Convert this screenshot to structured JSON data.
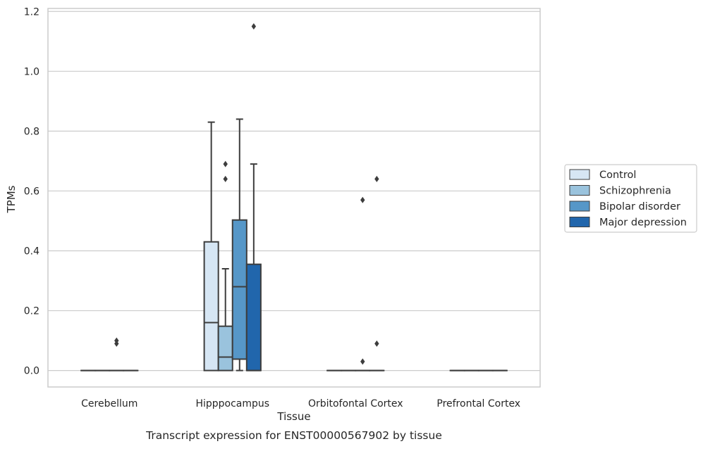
{
  "chart_data": {
    "type": "box",
    "xlabel": "Tissue",
    "ylabel": "TPMs",
    "caption": "Transcript expression for ENST00000567902 by tissue",
    "ylim": [
      -0.055,
      1.21
    ],
    "yticks": [
      0.0,
      0.2,
      0.4,
      0.6,
      0.8,
      1.0,
      1.2
    ],
    "ytick_labels": [
      "0.0",
      "0.2",
      "0.4",
      "0.6",
      "0.8",
      "1.0",
      "1.2"
    ],
    "grid": "horizontal",
    "legend_position": "right",
    "categories": [
      "Cerebellum",
      "Hipppocampus",
      "Orbitofontal Cortex",
      "Prefrontal Cortex"
    ],
    "series": [
      {
        "name": "Control",
        "color": "#d6e6f4",
        "boxes": [
          {
            "category": "Cerebellum",
            "whisker_low": 0,
            "q1": 0,
            "median": 0,
            "q3": 0,
            "whisker_high": 0,
            "outliers": []
          },
          {
            "category": "Hipppocampus",
            "whisker_low": 0,
            "q1": 0,
            "median": 0.16,
            "q3": 0.43,
            "whisker_high": 0.83,
            "outliers": []
          },
          {
            "category": "Orbitofontal Cortex",
            "whisker_low": 0,
            "q1": 0,
            "median": 0,
            "q3": 0,
            "whisker_high": 0,
            "outliers": []
          },
          {
            "category": "Prefrontal Cortex",
            "whisker_low": 0,
            "q1": 0,
            "median": 0,
            "q3": 0,
            "whisker_high": 0,
            "outliers": []
          }
        ]
      },
      {
        "name": "Schizophrenia",
        "color": "#9ac3dd",
        "boxes": [
          {
            "category": "Cerebellum",
            "whisker_low": 0,
            "q1": 0,
            "median": 0,
            "q3": 0,
            "whisker_high": 0,
            "outliers": []
          },
          {
            "category": "Hipppocampus",
            "whisker_low": 0,
            "q1": 0,
            "median": 0.045,
            "q3": 0.148,
            "whisker_high": 0.34,
            "outliers": [
              0.64,
              0.69
            ]
          },
          {
            "category": "Orbitofontal Cortex",
            "whisker_low": 0,
            "q1": 0,
            "median": 0,
            "q3": 0,
            "whisker_high": 0,
            "outliers": []
          },
          {
            "category": "Prefrontal Cortex",
            "whisker_low": 0,
            "q1": 0,
            "median": 0,
            "q3": 0,
            "whisker_high": 0,
            "outliers": []
          }
        ]
      },
      {
        "name": "Bipolar disorder",
        "color": "#5697c8",
        "boxes": [
          {
            "category": "Cerebellum",
            "whisker_low": 0,
            "q1": 0,
            "median": 0,
            "q3": 0,
            "whisker_high": 0,
            "outliers": [
              0.09,
              0.1
            ]
          },
          {
            "category": "Hipppocampus",
            "whisker_low": 0,
            "q1": 0.038,
            "median": 0.28,
            "q3": 0.503,
            "whisker_high": 0.84,
            "outliers": []
          },
          {
            "category": "Orbitofontal Cortex",
            "whisker_low": 0,
            "q1": 0,
            "median": 0,
            "q3": 0,
            "whisker_high": 0,
            "outliers": [
              0.03,
              0.57
            ]
          },
          {
            "category": "Prefrontal Cortex",
            "whisker_low": 0,
            "q1": 0,
            "median": 0,
            "q3": 0,
            "whisker_high": 0,
            "outliers": []
          }
        ]
      },
      {
        "name": "Major depression",
        "color": "#2166ac",
        "boxes": [
          {
            "category": "Cerebellum",
            "whisker_low": 0,
            "q1": 0,
            "median": 0,
            "q3": 0,
            "whisker_high": 0,
            "outliers": []
          },
          {
            "category": "Hipppocampus",
            "whisker_low": 0,
            "q1": 0,
            "median": 0,
            "q3": 0.355,
            "whisker_high": 0.69,
            "outliers": [
              1.15
            ]
          },
          {
            "category": "Orbitofontal Cortex",
            "whisker_low": 0,
            "q1": 0,
            "median": 0,
            "q3": 0,
            "whisker_high": 0,
            "outliers": [
              0.09,
              0.64
            ]
          },
          {
            "category": "Prefrontal Cortex",
            "whisker_low": 0,
            "q1": 0,
            "median": 0,
            "q3": 0,
            "whisker_high": 0,
            "outliers": []
          }
        ]
      }
    ]
  }
}
